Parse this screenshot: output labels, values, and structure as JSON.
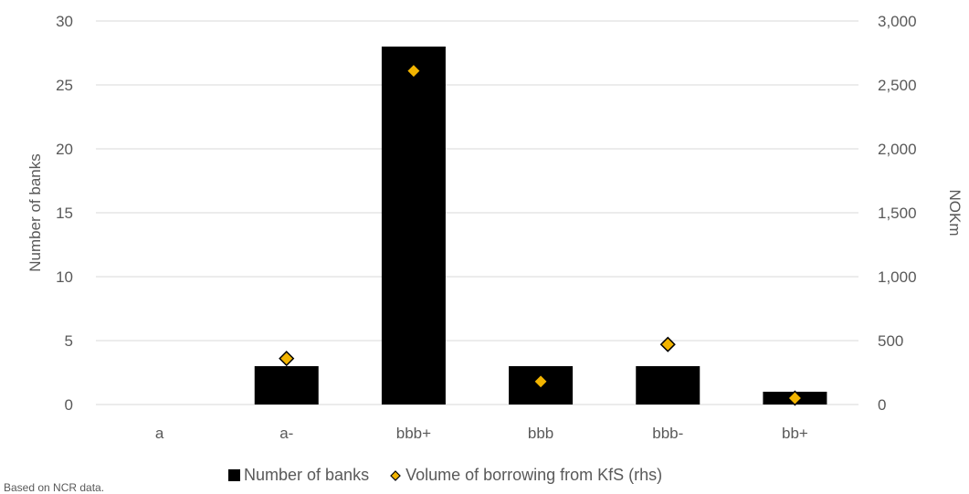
{
  "chart_data": {
    "type": "bar",
    "categories": [
      "a",
      "a-",
      "bbb+",
      "bbb",
      "bbb-",
      "bb+"
    ],
    "series": [
      {
        "name": "Number of banks",
        "type": "bar",
        "axis": "left",
        "color": "#000000",
        "values": [
          0,
          3,
          28,
          3,
          3,
          1
        ]
      },
      {
        "name": "Volume of borrowing from KfS (rhs)",
        "type": "scatter",
        "axis": "right",
        "marker": "diamond",
        "color": "#F2B400",
        "edge_color": "#000000",
        "values": [
          null,
          360,
          2610,
          180,
          470,
          50
        ]
      }
    ],
    "ylabel": "Number of banks",
    "y2label": "NOKm",
    "ylim": [
      0,
      30
    ],
    "y2lim": [
      0,
      3000
    ],
    "yticks": [
      "0",
      "5",
      "10",
      "15",
      "20",
      "25",
      "30"
    ],
    "y2ticks": [
      "0",
      "500",
      "1,000",
      "1,500",
      "2,000",
      "2,500",
      "3,000"
    ],
    "grid": true,
    "legend_position": "bottom"
  },
  "legend": {
    "bar_label": "Number of banks",
    "marker_label": "Volume of borrowing from KfS (rhs)"
  },
  "footnote": "Based on NCR data."
}
